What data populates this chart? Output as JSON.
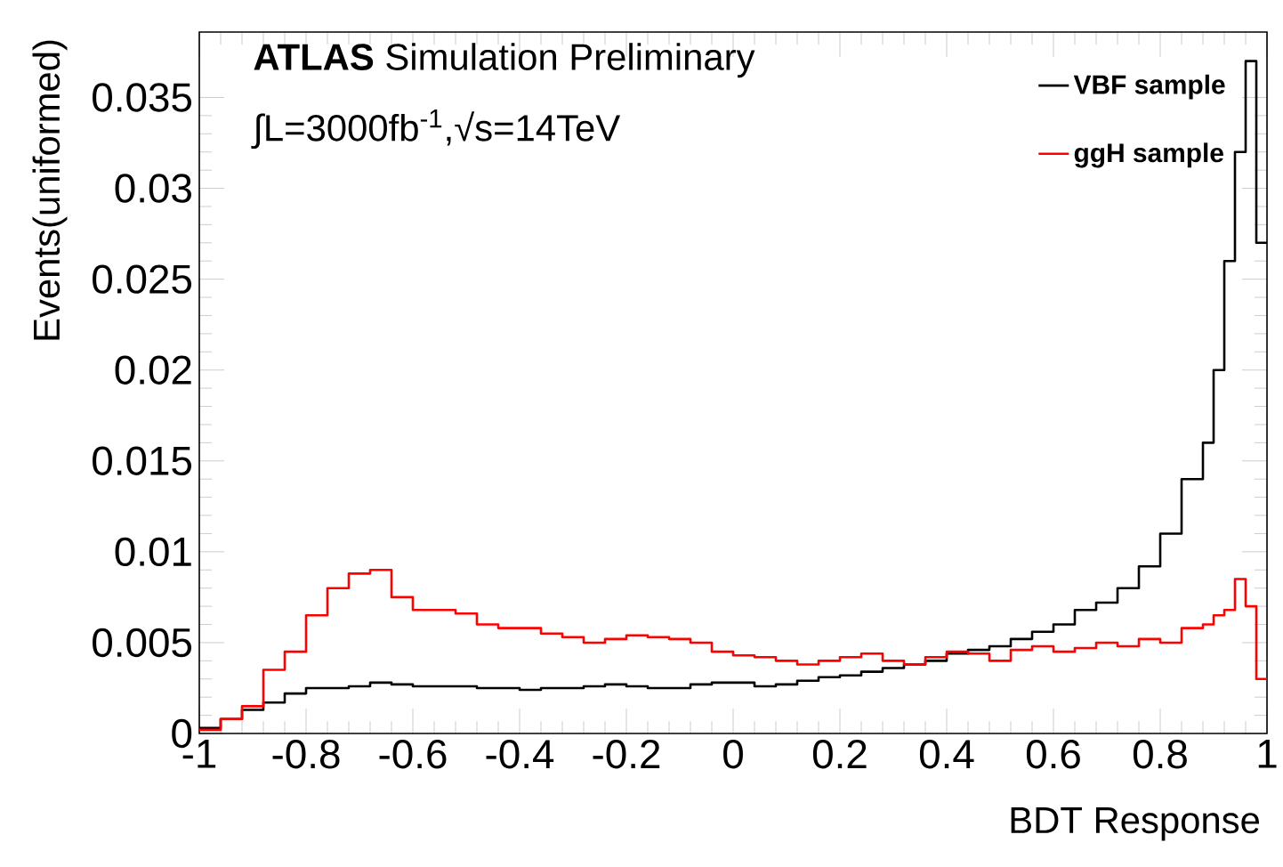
{
  "chart_data": {
    "type": "histogram",
    "xlabel": "BDT Response",
    "ylabel": "Events(uniformed)",
    "annotations": [
      "**ATLAS** Simulation Preliminary",
      "∫L=3000fb$^{-1}$,√s=14TeV"
    ],
    "bins": [
      -1,
      -0.96,
      -0.92,
      -0.88,
      -0.84,
      -0.8,
      -0.76,
      -0.72,
      -0.68,
      -0.64,
      -0.6,
      -0.56,
      -0.52,
      -0.48,
      -0.44,
      -0.4,
      -0.36,
      -0.32,
      -0.28,
      -0.24,
      -0.2,
      -0.16,
      -0.12,
      -0.08,
      -0.04,
      0,
      0.04,
      0.08,
      0.12,
      0.16,
      0.2,
      0.24,
      0.28,
      0.32,
      0.36,
      0.4,
      0.44,
      0.48,
      0.52,
      0.56,
      0.6,
      0.64,
      0.68,
      0.72,
      0.76,
      0.8,
      0.84,
      0.88,
      0.9,
      0.92,
      0.94,
      0.96,
      0.98,
      1
    ],
    "series": [
      {
        "name": "VBF sample",
        "color": "#000000",
        "values": [
          0.0003,
          0.0008,
          0.0013,
          0.0017,
          0.0022,
          0.0025,
          0.0025,
          0.0026,
          0.0028,
          0.0027,
          0.0026,
          0.0026,
          0.0026,
          0.0025,
          0.0025,
          0.0024,
          0.0025,
          0.0025,
          0.0026,
          0.0027,
          0.0026,
          0.0025,
          0.0025,
          0.0027,
          0.0028,
          0.0028,
          0.0026,
          0.0027,
          0.0029,
          0.0031,
          0.0032,
          0.0034,
          0.0036,
          0.0038,
          0.004,
          0.0044,
          0.0046,
          0.0048,
          0.0052,
          0.0056,
          0.006,
          0.0068,
          0.0072,
          0.008,
          0.0092,
          0.011,
          0.014,
          0.016,
          0.02,
          0.026,
          0.032,
          0.037,
          0.027
        ]
      },
      {
        "name": "ggH sample",
        "color": "#ff0000",
        "values": [
          0.0002,
          0.0008,
          0.0015,
          0.0035,
          0.0045,
          0.0065,
          0.008,
          0.0088,
          0.009,
          0.0075,
          0.0068,
          0.0068,
          0.0066,
          0.006,
          0.0058,
          0.0058,
          0.0055,
          0.0053,
          0.005,
          0.0052,
          0.0054,
          0.0053,
          0.0052,
          0.005,
          0.0045,
          0.0043,
          0.0042,
          0.004,
          0.0038,
          0.004,
          0.0042,
          0.0044,
          0.004,
          0.0038,
          0.0042,
          0.0045,
          0.0044,
          0.004,
          0.0046,
          0.0048,
          0.0045,
          0.0047,
          0.005,
          0.0048,
          0.0052,
          0.005,
          0.0058,
          0.006,
          0.0065,
          0.0068,
          0.0085,
          0.007,
          0.003
        ]
      }
    ],
    "xlim": [
      -1,
      1
    ],
    "ylim": [
      0,
      0.0386
    ],
    "xticks": [
      -1,
      -0.8,
      -0.6,
      -0.4,
      -0.2,
      0,
      0.2,
      0.4,
      0.6,
      0.8,
      1
    ],
    "yticks": [
      0,
      0.005,
      0.01,
      0.015,
      0.02,
      0.025,
      0.03,
      0.035
    ],
    "legend": "top right"
  }
}
